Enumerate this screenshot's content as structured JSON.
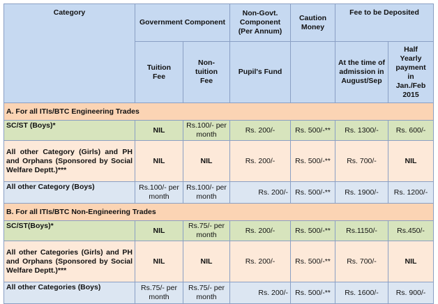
{
  "header": {
    "category": "Category",
    "government_component": "Government Component",
    "non_govt_component": "Non-Govt. Component (Per Annum)",
    "caution_money": "Caution Money",
    "fee_to_be_deposited": "Fee to be Deposited",
    "tuition_fee": "Tuition Fee",
    "non_tuition_fee": "Non-tuition Fee",
    "pupils_fund": "Pupil's Fund",
    "at_admission": "At the time of admission in August/Sep",
    "half_yearly": "Half Yearly payment in Jan./Feb 2015"
  },
  "sections": [
    {
      "title": "A. For all ITIs/BTC Engineering Trades",
      "rows": [
        {
          "category": "SC/ST (Boys)*",
          "tuition": "NIL",
          "non_tuition": "Rs.100/- per month",
          "pupils_fund": "Rs. 200/-",
          "caution": "Rs. 500/-**",
          "admission": "Rs. 1300/-",
          "half_yearly": "Rs. 600/-"
        },
        {
          "category": "All other Category (Girls) and PH and Orphans (Sponsored by Social Welfare Deptt.)***",
          "tuition": "NIL",
          "non_tuition": "NIL",
          "pupils_fund": "Rs. 200/-",
          "caution": "Rs. 500/-**",
          "admission": "Rs. 700/-",
          "half_yearly": "NIL"
        },
        {
          "category": "All other Category (Boys)",
          "tuition": "Rs.100/- per month",
          "non_tuition": "Rs.100/- per month",
          "pupils_fund": "Rs. 200/-",
          "caution": "Rs. 500/-**",
          "admission": "Rs. 1900/-",
          "half_yearly": "Rs. 1200/-"
        }
      ]
    },
    {
      "title": "B. For all ITIs/BTC Non-Engineering Trades",
      "rows": [
        {
          "category": "SC/ST(Boys)*",
          "tuition": "NIL",
          "non_tuition": "Rs.75/- per month",
          "pupils_fund": "Rs. 200/-",
          "caution": "Rs. 500/-**",
          "admission": "Rs.1150/-",
          "half_yearly": "Rs.450/-"
        },
        {
          "category": "All other Categories (Girls) and PH and Orphans (Sponsored by Social Welfare Deptt.)***",
          "tuition": "NIL",
          "non_tuition": "NIL",
          "pupils_fund": "Rs. 200/-",
          "caution": "Rs. 500/-**",
          "admission": "Rs. 700/-",
          "half_yearly": "NIL"
        },
        {
          "category": "All other Categories (Boys)",
          "tuition": "Rs.75/- per month",
          "non_tuition": "Rs.75/- per month",
          "pupils_fund": "Rs. 200/-",
          "caution": "Rs. 500/-**",
          "admission": "Rs. 1600/-",
          "half_yearly": "Rs. 900/-"
        }
      ]
    }
  ],
  "colors": {
    "header_bg": "#c6d9f1",
    "section_bg": "#fbd4b4",
    "row_green": "#d7e4bd",
    "row_peach": "#fde9d9",
    "row_blue": "#dce6f2",
    "border": "#8a9fc4"
  }
}
